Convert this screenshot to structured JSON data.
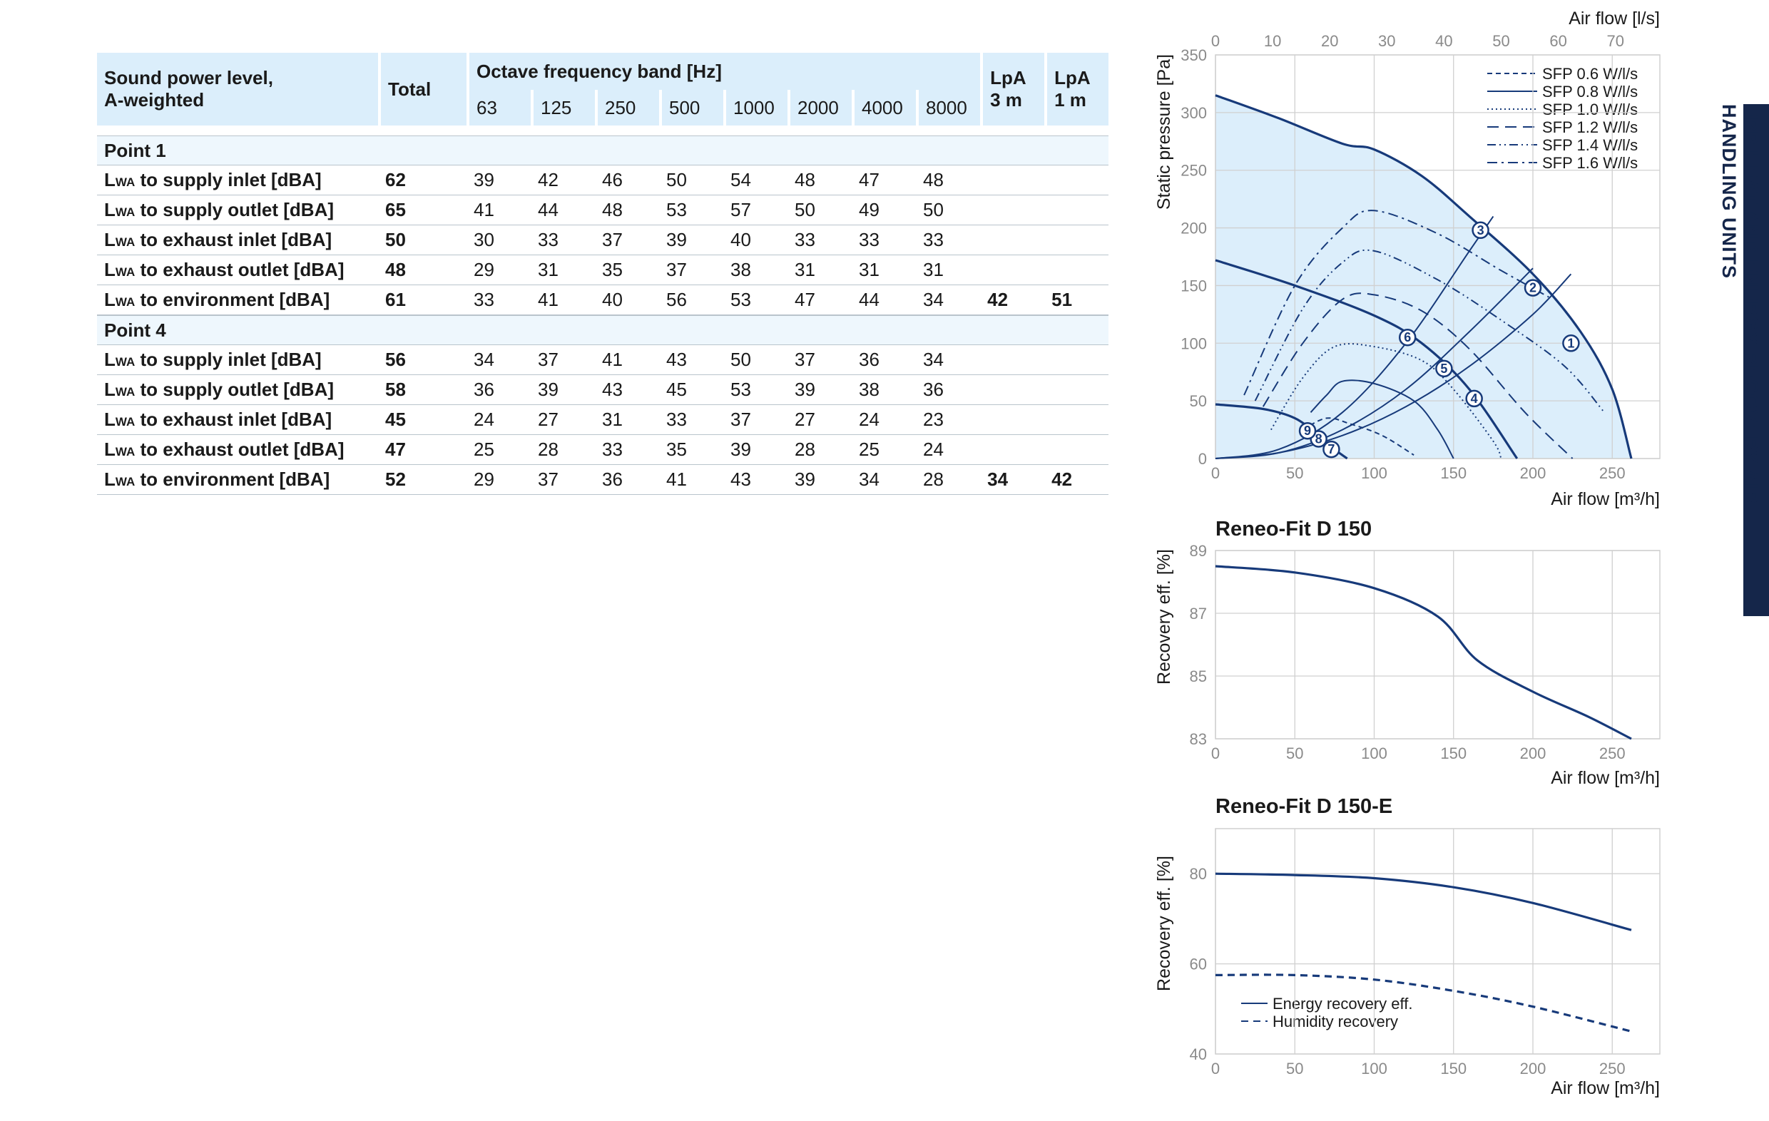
{
  "side_tab": "EPP HEAT AND ENERGY RECOVERY AIR HANDLING UNITS",
  "table": {
    "header": {
      "sound_line1": "Sound power level,",
      "sound_line2": "A-weighted",
      "total": "Total",
      "octave": "Octave frequency band [Hz]",
      "bands": [
        "63",
        "125",
        "250",
        "500",
        "1000",
        "2000",
        "4000",
        "8000"
      ],
      "lpa3_line1": "LpA",
      "lpa3_line2": "3 m",
      "lpa1_line1": "LpA",
      "lpa1_line2": "1 m"
    },
    "groups": [
      {
        "name": "Point 1",
        "rows": [
          {
            "l": "L",
            "sub": "WA",
            "rest": " to supply inlet [dBA]",
            "total": "62",
            "b": [
              "39",
              "42",
              "46",
              "50",
              "54",
              "48",
              "47",
              "48"
            ],
            "lpa3": "",
            "lpa1": ""
          },
          {
            "l": "L",
            "sub": "WA",
            "rest": " to supply outlet [dBA]",
            "total": "65",
            "b": [
              "41",
              "44",
              "48",
              "53",
              "57",
              "50",
              "49",
              "50"
            ],
            "lpa3": "",
            "lpa1": ""
          },
          {
            "l": "L",
            "sub": "WA",
            "rest": " to exhaust inlet [dBA]",
            "total": "50",
            "b": [
              "30",
              "33",
              "37",
              "39",
              "40",
              "33",
              "33",
              "33"
            ],
            "lpa3": "",
            "lpa1": ""
          },
          {
            "l": "L",
            "sub": "WA",
            "rest": " to exhaust outlet [dBA]",
            "total": "48",
            "b": [
              "29",
              "31",
              "35",
              "37",
              "38",
              "31",
              "31",
              "31"
            ],
            "lpa3": "",
            "lpa1": ""
          },
          {
            "l": "L",
            "sub": "WA",
            "rest": " to environment [dBA]",
            "total": "61",
            "b": [
              "33",
              "41",
              "40",
              "56",
              "53",
              "47",
              "44",
              "34"
            ],
            "lpa3": "42",
            "lpa1": "51"
          }
        ]
      },
      {
        "name": "Point 4",
        "rows": [
          {
            "l": "L",
            "sub": "WA",
            "rest": " to supply inlet [dBA]",
            "total": "56",
            "b": [
              "34",
              "37",
              "41",
              "43",
              "50",
              "37",
              "36",
              "34"
            ],
            "lpa3": "",
            "lpa1": ""
          },
          {
            "l": "L",
            "sub": "WA",
            "rest": " to supply outlet [dBA]",
            "total": "58",
            "b": [
              "36",
              "39",
              "43",
              "45",
              "53",
              "39",
              "38",
              "36"
            ],
            "lpa3": "",
            "lpa1": ""
          },
          {
            "l": "L",
            "sub": "WA",
            "rest": " to exhaust inlet [dBA]",
            "total": "45",
            "b": [
              "24",
              "27",
              "31",
              "33",
              "37",
              "27",
              "24",
              "23"
            ],
            "lpa3": "",
            "lpa1": ""
          },
          {
            "l": "L",
            "sub": "WA",
            "rest": " to exhaust outlet [dBA]",
            "total": "47",
            "b": [
              "25",
              "28",
              "33",
              "35",
              "39",
              "28",
              "25",
              "24"
            ],
            "lpa3": "",
            "lpa1": ""
          },
          {
            "l": "L",
            "sub": "WA",
            "rest": " to environment [dBA]",
            "total": "52",
            "b": [
              "29",
              "37",
              "36",
              "41",
              "43",
              "39",
              "34",
              "28"
            ],
            "lpa3": "34",
            "lpa1": "42"
          }
        ]
      }
    ]
  },
  "colors": {
    "navy": "#173a7a",
    "fill": "#dceefb",
    "grid": "#d0d0d0",
    "tab": "#15264a",
    "header": "#dbeefb"
  },
  "chart_data": [
    {
      "type": "line",
      "title": "",
      "xlabel": "Air flow [m³/h]",
      "ylabel": "Static pressure [Pa]",
      "x2label": "Air flow [l/s]",
      "xlim": [
        0,
        280
      ],
      "ylim": [
        0,
        350
      ],
      "x_ticks": [
        0,
        50,
        100,
        150,
        200,
        250
      ],
      "y_ticks": [
        0,
        50,
        100,
        150,
        200,
        250,
        300,
        350
      ],
      "x2_ticks": [
        0,
        10,
        20,
        30,
        40,
        50,
        60,
        70
      ],
      "x2_factor": 3.6,
      "fan_curves": [
        {
          "name": "max",
          "points": [
            [
              0,
              315
            ],
            [
              40,
              295
            ],
            [
              80,
              273
            ],
            [
              100,
              268
            ],
            [
              130,
              245
            ],
            [
              160,
              210
            ],
            [
              200,
              160
            ],
            [
              230,
              110
            ],
            [
              250,
              60
            ],
            [
              262,
              0
            ]
          ]
        },
        {
          "name": "mid",
          "points": [
            [
              0,
              172
            ],
            [
              50,
              150
            ],
            [
              100,
              124
            ],
            [
              130,
              100
            ],
            [
              160,
              60
            ],
            [
              190,
              0
            ]
          ]
        },
        {
          "name": "min",
          "points": [
            [
              0,
              47
            ],
            [
              30,
              43
            ],
            [
              50,
              35
            ],
            [
              65,
              20
            ],
            [
              75,
              8
            ],
            [
              83,
              0
            ]
          ]
        }
      ],
      "system_curves": [
        {
          "name": "a",
          "points": [
            [
              0,
              0
            ],
            [
              40,
              5
            ],
            [
              80,
              20
            ],
            [
              120,
              45
            ],
            [
              160,
              80
            ],
            [
              200,
              125
            ],
            [
              224,
              160
            ]
          ]
        },
        {
          "name": "b",
          "points": [
            [
              0,
              0
            ],
            [
              40,
              5
            ],
            [
              80,
              25
            ],
            [
              120,
              60
            ],
            [
              160,
              110
            ],
            [
              200,
              165
            ]
          ]
        },
        {
          "name": "c",
          "points": [
            [
              0,
              0
            ],
            [
              40,
              8
            ],
            [
              80,
              40
            ],
            [
              120,
              100
            ],
            [
              160,
              180
            ],
            [
              175,
              210
            ]
          ]
        }
      ],
      "sfp_series": [
        {
          "name": "SFP 0.6 W/l/s",
          "style": "short-dash",
          "points": [
            [
              55,
              25
            ],
            [
              70,
              35
            ],
            [
              85,
              30
            ],
            [
              105,
              20
            ],
            [
              125,
              3
            ]
          ]
        },
        {
          "name": "SFP 0.8 W/l/s",
          "style": "solid",
          "points": [
            [
              60,
              40
            ],
            [
              70,
              55
            ],
            [
              80,
              67
            ],
            [
              100,
              65
            ],
            [
              125,
              50
            ],
            [
              140,
              25
            ],
            [
              150,
              0
            ]
          ]
        },
        {
          "name": "SFP 1.0 W/l/s",
          "style": "dot",
          "points": [
            [
              35,
              25
            ],
            [
              55,
              70
            ],
            [
              75,
              97
            ],
            [
              100,
              97
            ],
            [
              130,
              85
            ],
            [
              150,
              60
            ],
            [
              175,
              15
            ],
            [
              180,
              0
            ]
          ]
        },
        {
          "name": "SFP 1.2 W/l/s",
          "style": "long-dash",
          "points": [
            [
              30,
              45
            ],
            [
              55,
              100
            ],
            [
              80,
              138
            ],
            [
              100,
              142
            ],
            [
              130,
              128
            ],
            [
              160,
              95
            ],
            [
              195,
              40
            ],
            [
              225,
              0
            ]
          ]
        },
        {
          "name": "SFP 1.4 W/l/s",
          "style": "dash-dot-dot",
          "points": [
            [
              25,
              50
            ],
            [
              55,
              130
            ],
            [
              80,
              170
            ],
            [
              100,
              180
            ],
            [
              140,
              155
            ],
            [
              180,
              120
            ],
            [
              220,
              80
            ],
            [
              245,
              40
            ]
          ]
        },
        {
          "name": "SFP 1.6 W/l/s",
          "style": "dash-dot",
          "points": [
            [
              18,
              55
            ],
            [
              50,
              150
            ],
            [
              80,
              200
            ],
            [
              100,
              215
            ],
            [
              140,
              195
            ],
            [
              180,
              163
            ],
            [
              210,
              140
            ]
          ]
        }
      ],
      "points": [
        {
          "label": "1",
          "x": 224,
          "y": 100
        },
        {
          "label": "2",
          "x": 200,
          "y": 148
        },
        {
          "label": "3",
          "x": 167,
          "y": 198
        },
        {
          "label": "4",
          "x": 163,
          "y": 52
        },
        {
          "label": "5",
          "x": 144,
          "y": 78
        },
        {
          "label": "6",
          "x": 121,
          "y": 105
        },
        {
          "label": "7",
          "x": 73,
          "y": 8
        },
        {
          "label": "8",
          "x": 65,
          "y": 17
        },
        {
          "label": "9",
          "x": 58,
          "y": 24
        }
      ]
    },
    {
      "type": "line",
      "title": "Reneo-Fit D 150",
      "xlabel": "Air flow [m³/h]",
      "ylabel": "Recovery eff. [%]",
      "xlim": [
        0,
        280
      ],
      "ylim": [
        83,
        89
      ],
      "x_ticks": [
        0,
        50,
        100,
        150,
        200,
        250
      ],
      "y_ticks": [
        83,
        85,
        87,
        89
      ],
      "series": [
        {
          "name": "Recovery eff.",
          "points": [
            [
              0,
              88.5
            ],
            [
              50,
              88.3
            ],
            [
              100,
              87.8
            ],
            [
              140,
              86.9
            ],
            [
              165,
              85.5
            ],
            [
              200,
              84.5
            ],
            [
              235,
              83.7
            ],
            [
              262,
              83.0
            ]
          ]
        }
      ]
    },
    {
      "type": "line",
      "title": "Reneo-Fit D 150-E",
      "xlabel": "Air flow [m³/h]",
      "ylabel": "Recovery eff. [%]",
      "xlim": [
        0,
        280
      ],
      "ylim": [
        40,
        90
      ],
      "x_ticks": [
        0,
        50,
        100,
        150,
        200,
        250
      ],
      "y_ticks": [
        40,
        60,
        80
      ],
      "legend": [
        "Energy recovery eff.",
        "Humidity recovery"
      ],
      "series": [
        {
          "name": "Energy recovery eff.",
          "style": "solid",
          "points": [
            [
              0,
              80
            ],
            [
              50,
              79.7
            ],
            [
              100,
              79
            ],
            [
              150,
              77
            ],
            [
              200,
              73.5
            ],
            [
              262,
              67.5
            ]
          ]
        },
        {
          "name": "Humidity recovery",
          "style": "dash",
          "points": [
            [
              0,
              57.5
            ],
            [
              50,
              57.5
            ],
            [
              100,
              56.5
            ],
            [
              150,
              54
            ],
            [
              200,
              50.5
            ],
            [
              262,
              45
            ]
          ]
        }
      ]
    }
  ]
}
